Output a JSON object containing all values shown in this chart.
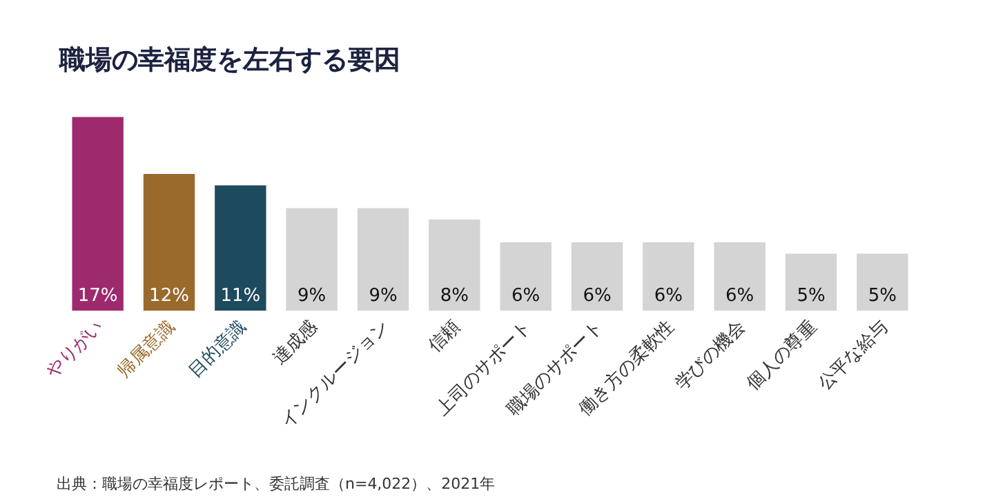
{
  "chart_data": {
    "type": "bar",
    "title": "職場の幸福度を左右する要因",
    "categories": [
      "やりがい",
      "帰属意識",
      "目的意識",
      "達成感",
      "インクルージョン",
      "信頼",
      "上司のサポート",
      "職場のサポート",
      "働き方の柔軟性",
      "学びの機会",
      "個人の尊重",
      "公平な給与"
    ],
    "values": [
      17,
      12,
      11,
      9,
      9,
      8,
      6,
      6,
      6,
      6,
      5,
      5
    ],
    "value_labels": [
      "17%",
      "12%",
      "11%",
      "9%",
      "9%",
      "8%",
      "6%",
      "6%",
      "6%",
      "6%",
      "5%",
      "5%"
    ],
    "colors": [
      "#9e2a6e",
      "#9a6a2c",
      "#1e4a5e",
      "#d4d4d4",
      "#d4d4d4",
      "#d4d4d4",
      "#d4d4d4",
      "#d4d4d4",
      "#d4d4d4",
      "#d4d4d4",
      "#d4d4d4",
      "#d4d4d4"
    ],
    "annotations": [
      "出典：職場の幸福度レポート、委託調査（n=4,022）、2021年"
    ]
  }
}
